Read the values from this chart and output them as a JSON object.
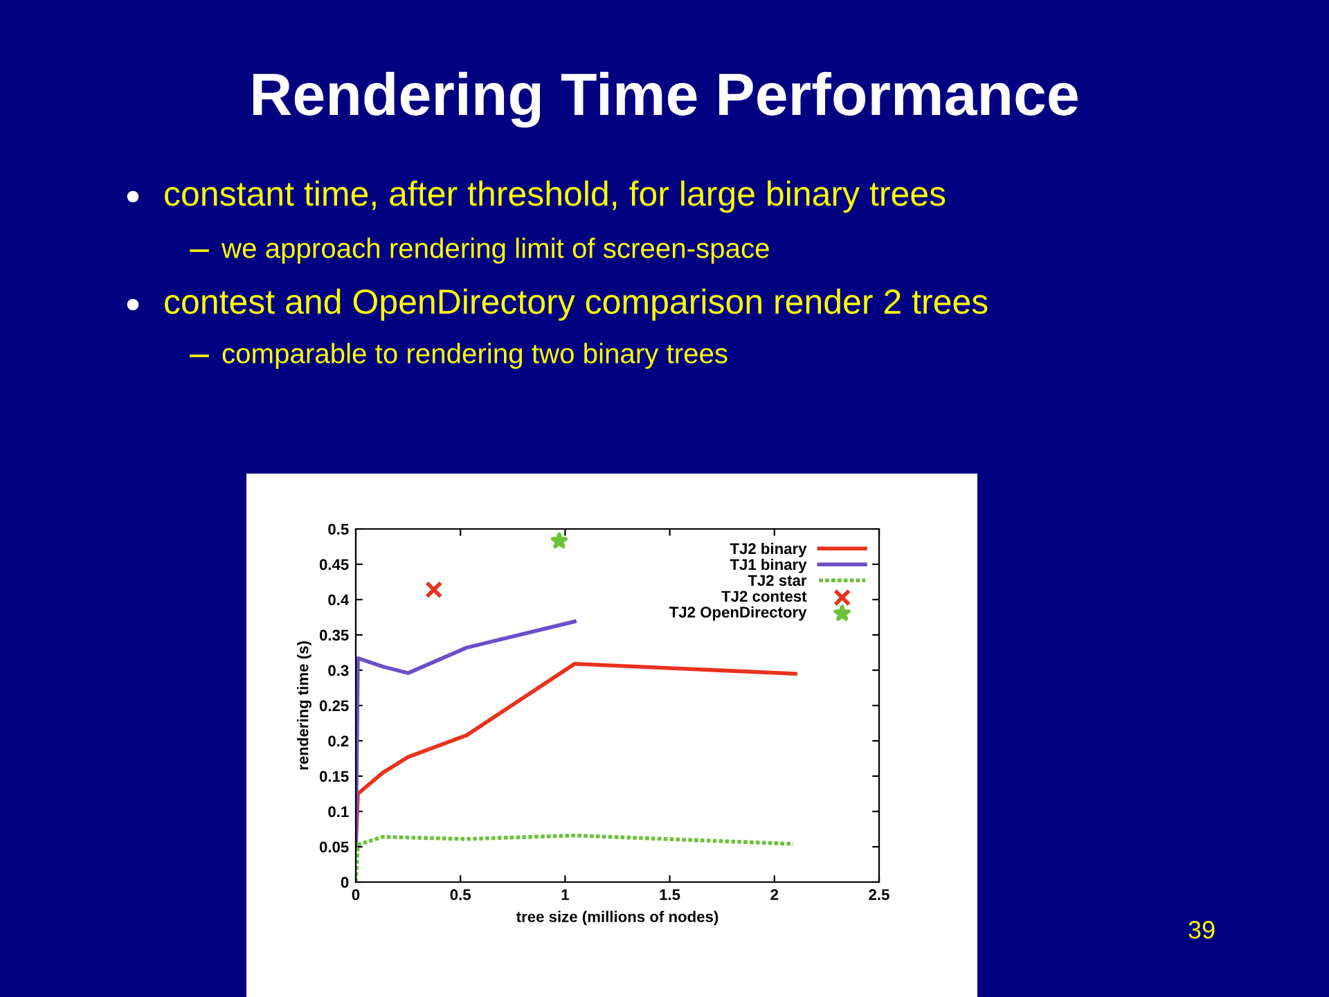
{
  "chart_data": {
    "type": "line",
    "title": "Rendering Time Performance",
    "annotations": [
      "constant time, after threshold, for large binary trees",
      "we approach rendering limit of screen-space",
      "contest and OpenDirectory comparison render 2 trees",
      "comparable to rendering two binary trees",
      "39"
    ],
    "xlabel": "tree size (millions of nodes)",
    "ylabel": "rendering time (s)",
    "xlim": [
      0,
      2.5
    ],
    "ylim": [
      0,
      0.5
    ],
    "xticks": [
      0,
      0.5,
      1,
      1.5,
      2,
      2.5
    ],
    "yticks": [
      0,
      0.05,
      0.1,
      0.15,
      0.2,
      0.25,
      0.3,
      0.35,
      0.4,
      0.45,
      0.5
    ],
    "grid": false,
    "legend": "top right",
    "series": [
      {
        "name": "TJ2 binary",
        "color": "#e8321e",
        "line_style": "solid",
        "x": [
          0,
          0.01,
          0.13,
          0.25,
          0.53,
          1.045,
          2.1
        ],
        "values": [
          0.05,
          0.125,
          0.155,
          0.177,
          0.208,
          0.309,
          0.295
        ]
      },
      {
        "name": "TJ1 binary",
        "color": "#6a4fc8",
        "line_style": "solid",
        "x": [
          0,
          0.01,
          0.13,
          0.25,
          0.53,
          1.045
        ],
        "values": [
          0.05,
          0.317,
          0.305,
          0.296,
          0.332,
          0.369
        ]
      },
      {
        "name": "TJ2 star",
        "color": "#6cc23a",
        "line_style": "dotted",
        "x": [
          0,
          0.01,
          0.13,
          0.53,
          1.045,
          2.09
        ],
        "values": [
          0,
          0.053,
          0.064,
          0.061,
          0.066,
          0.054
        ]
      },
      {
        "name": "TJ2 contest",
        "type": "scatter",
        "marker": "cross",
        "color": "#e8321e",
        "x": [
          0.373
        ],
        "values": [
          0.414
        ]
      },
      {
        "name": "TJ2 OpenDirectory",
        "type": "scatter",
        "marker": "star",
        "color": "#6cc23a",
        "x": [
          0.972
        ],
        "values": [
          0.483
        ]
      }
    ]
  }
}
